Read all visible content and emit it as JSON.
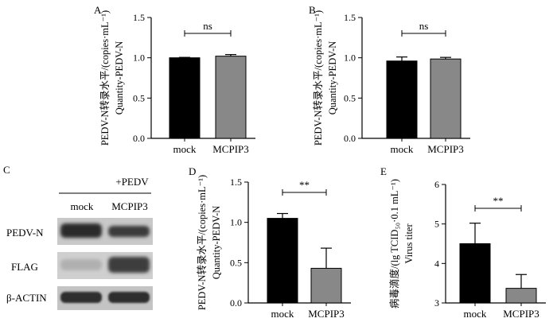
{
  "panels": {
    "A": {
      "letter": "A"
    },
    "B": {
      "letter": "B"
    },
    "C": {
      "letter": "C"
    },
    "D": {
      "letter": "D"
    },
    "E": {
      "letter": "E"
    }
  },
  "blot": {
    "treatment_label": "+PEDV",
    "lanes": [
      "mock",
      "MCPIP3"
    ],
    "rows": [
      "PEDV-N",
      "FLAG",
      "β-ACTIN"
    ]
  },
  "colors": {
    "mock": "#000000",
    "mcpip3": "#888888",
    "axis": "#000000"
  },
  "chart_data": [
    {
      "panel": "A",
      "type": "bar",
      "categories": [
        "mock",
        "MCPIP3"
      ],
      "values": [
        1.0,
        1.02
      ],
      "errors": [
        0.005,
        0.02
      ],
      "ylabel_lines": [
        "PEDV-N转录水平/(copies·mL⁻¹)",
        "Quantity-PEDV-N"
      ],
      "ylim": [
        0,
        1.5
      ],
      "yticks": [
        "0.0",
        "0.5",
        "1.0",
        "1.5"
      ],
      "significance": "ns"
    },
    {
      "panel": "B",
      "type": "bar",
      "categories": [
        "mock",
        "MCPIP3"
      ],
      "values": [
        0.96,
        0.985
      ],
      "errors": [
        0.05,
        0.02
      ],
      "ylabel_lines": [
        "PEDV-N转录水平/(copies·mL⁻¹)",
        "Quantity-PEDV-N"
      ],
      "ylim": [
        0,
        1.5
      ],
      "yticks": [
        "0.0",
        "0.5",
        "1.0",
        "1.5"
      ],
      "significance": "ns"
    },
    {
      "panel": "D",
      "type": "bar",
      "categories": [
        "mock",
        "MCPIP3"
      ],
      "values": [
        1.05,
        0.43
      ],
      "errors": [
        0.06,
        0.25
      ],
      "ylabel_lines": [
        "PEDV-N转录水平/(copies·mL⁻¹)",
        "Quantity-PEDV-N"
      ],
      "ylim": [
        0,
        1.5
      ],
      "yticks": [
        "0.0",
        "0.5",
        "1.0",
        "1.5"
      ],
      "significance": "**"
    },
    {
      "panel": "E",
      "type": "bar",
      "categories": [
        "mock",
        "MCPIP3"
      ],
      "values": [
        4.5,
        3.37
      ],
      "errors": [
        0.52,
        0.35
      ],
      "ylabel_lines": [
        "病毒滴度/(lg TCID₅₀·0.1 mL⁻¹)",
        "Virus titer"
      ],
      "ylim": [
        3,
        6
      ],
      "yticks": [
        "3",
        "4",
        "5",
        "6"
      ],
      "significance": "**"
    }
  ]
}
